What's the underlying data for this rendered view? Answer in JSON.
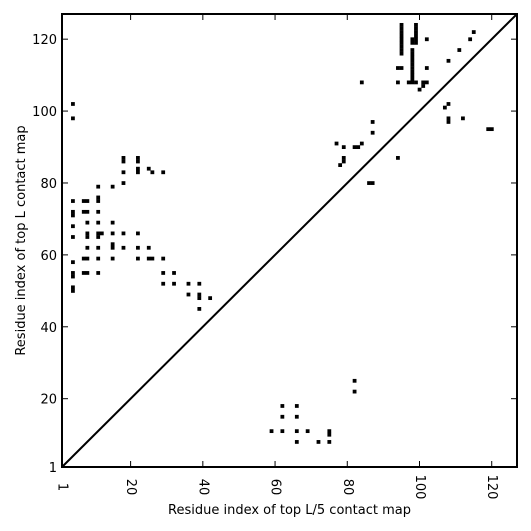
{
  "chart_data": {
    "type": "scatter",
    "xlabel": "Residue index of top L/5 contact map",
    "ylabel": "Residue index of top L contact map",
    "xlim": [
      1,
      127
    ],
    "ylim": [
      1,
      127
    ],
    "x_ticks": [
      1,
      20,
      40,
      60,
      80,
      100,
      120
    ],
    "x_tick_labels": [
      "1",
      "20",
      "40",
      "60",
      "80",
      "100",
      "120"
    ],
    "y_ticks": [
      1,
      20,
      40,
      60,
      80,
      100,
      120
    ],
    "y_tick_labels": [
      "1",
      "20",
      "40",
      "60",
      "80",
      "100",
      "120"
    ],
    "grid": false,
    "diagonal": true,
    "marker": "square",
    "marker_color": "#000000",
    "series": [
      {
        "points": [
          [
            4,
            102
          ],
          [
            4,
            98
          ],
          [
            4,
            75
          ],
          [
            4,
            72
          ],
          [
            4,
            71
          ],
          [
            4,
            68
          ],
          [
            4,
            65
          ],
          [
            4,
            58
          ],
          [
            4,
            55
          ],
          [
            4,
            54
          ],
          [
            4,
            51
          ],
          [
            4,
            50
          ],
          [
            7,
            75
          ],
          [
            8,
            75
          ],
          [
            7,
            72
          ],
          [
            8,
            72
          ],
          [
            8,
            69
          ],
          [
            8,
            66
          ],
          [
            8,
            65
          ],
          [
            8,
            62
          ],
          [
            7,
            59
          ],
          [
            8,
            59
          ],
          [
            7,
            55
          ],
          [
            8,
            55
          ],
          [
            11,
            79
          ],
          [
            11,
            76
          ],
          [
            11,
            75
          ],
          [
            11,
            72
          ],
          [
            11,
            69
          ],
          [
            11,
            66
          ],
          [
            12,
            66
          ],
          [
            11,
            65
          ],
          [
            11,
            62
          ],
          [
            11,
            59
          ],
          [
            11,
            55
          ],
          [
            15,
            79
          ],
          [
            15,
            69
          ],
          [
            15,
            66
          ],
          [
            15,
            63
          ],
          [
            15,
            62
          ],
          [
            15,
            59
          ],
          [
            18,
            87
          ],
          [
            18,
            86
          ],
          [
            18,
            83
          ],
          [
            18,
            80
          ],
          [
            18,
            66
          ],
          [
            18,
            62
          ],
          [
            22,
            87
          ],
          [
            22,
            86
          ],
          [
            22,
            84
          ],
          [
            22,
            83
          ],
          [
            22,
            66
          ],
          [
            22,
            62
          ],
          [
            22,
            59
          ],
          [
            25,
            84
          ],
          [
            26,
            83
          ],
          [
            25,
            62
          ],
          [
            25,
            59
          ],
          [
            26,
            59
          ],
          [
            29,
            83
          ],
          [
            29,
            59
          ],
          [
            29,
            55
          ],
          [
            29,
            52
          ],
          [
            32,
            55
          ],
          [
            32,
            52
          ],
          [
            36,
            52
          ],
          [
            36,
            49
          ],
          [
            39,
            52
          ],
          [
            39,
            49
          ],
          [
            39,
            48
          ],
          [
            39,
            45
          ],
          [
            42,
            48
          ],
          [
            59,
            11
          ],
          [
            62,
            18
          ],
          [
            62,
            15
          ],
          [
            62,
            11
          ],
          [
            66,
            18
          ],
          [
            66,
            15
          ],
          [
            66,
            11
          ],
          [
            66,
            8
          ],
          [
            69,
            11
          ],
          [
            72,
            8
          ],
          [
            75,
            11
          ],
          [
            75,
            10
          ],
          [
            75,
            8
          ],
          [
            77,
            91
          ],
          [
            78,
            85
          ],
          [
            79,
            87
          ],
          [
            79,
            86
          ],
          [
            79,
            90
          ],
          [
            82,
            90
          ],
          [
            83,
            90
          ],
          [
            84,
            91
          ],
          [
            84,
            108
          ],
          [
            82,
            25
          ],
          [
            82,
            22
          ],
          [
            86,
            80
          ],
          [
            87,
            80
          ],
          [
            87,
            94
          ],
          [
            87,
            97
          ],
          [
            94,
            87
          ],
          [
            94,
            108
          ],
          [
            94,
            112
          ],
          [
            95,
            112
          ],
          [
            95,
            124
          ],
          [
            95,
            123
          ],
          [
            95,
            122
          ],
          [
            95,
            121
          ],
          [
            95,
            120
          ],
          [
            95,
            119
          ],
          [
            95,
            118
          ],
          [
            95,
            117
          ],
          [
            95,
            116
          ],
          [
            97,
            108
          ],
          [
            98,
            108
          ],
          [
            99,
            108
          ],
          [
            98,
            120
          ],
          [
            98,
            119
          ],
          [
            98,
            117
          ],
          [
            98,
            116
          ],
          [
            98,
            115
          ],
          [
            98,
            114
          ],
          [
            98,
            113
          ],
          [
            98,
            112
          ],
          [
            98,
            111
          ],
          [
            98,
            110
          ],
          [
            98,
            109
          ],
          [
            99,
            124
          ],
          [
            99,
            123
          ],
          [
            99,
            122
          ],
          [
            99,
            121
          ],
          [
            99,
            120
          ],
          [
            99,
            119
          ],
          [
            100,
            106
          ],
          [
            101,
            107
          ],
          [
            101,
            108
          ],
          [
            102,
            108
          ],
          [
            102,
            112
          ],
          [
            102,
            120
          ],
          [
            107,
            101
          ],
          [
            108,
            102
          ],
          [
            108,
            98
          ],
          [
            108,
            97
          ],
          [
            108,
            114
          ],
          [
            111,
            117
          ],
          [
            112,
            98
          ],
          [
            114,
            120
          ],
          [
            115,
            122
          ],
          [
            119,
            95
          ],
          [
            120,
            95
          ]
        ]
      }
    ]
  }
}
